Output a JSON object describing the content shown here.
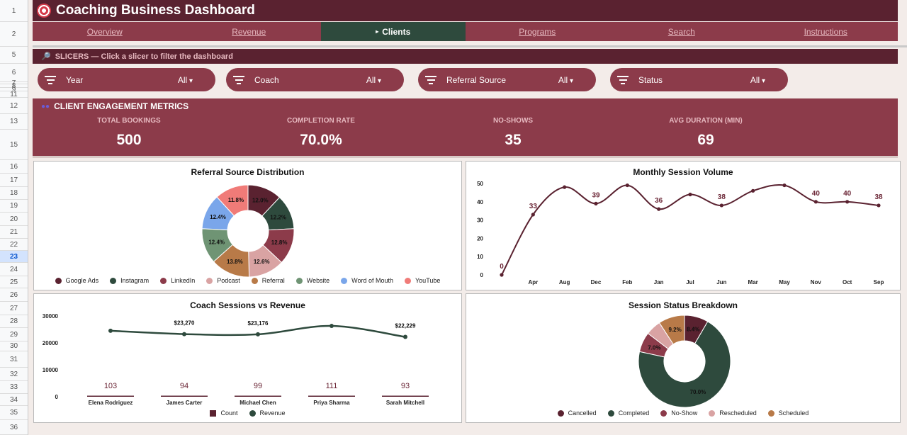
{
  "rows": [
    "1",
    "2",
    "5",
    "6",
    "7",
    "8",
    "9",
    "11",
    "12",
    "13",
    "15",
    "16",
    "17",
    "18",
    "19",
    "20",
    "21",
    "22",
    "23",
    "24",
    "25",
    "26",
    "27",
    "28",
    "29",
    "30",
    "31",
    "32",
    "33",
    "34",
    "35",
    "36"
  ],
  "title": "Coaching Business Dashboard",
  "nav": [
    {
      "label": "Overview",
      "active": false
    },
    {
      "label": "Revenue",
      "active": false
    },
    {
      "label": "Clients",
      "active": true,
      "prefix": "▸"
    },
    {
      "label": "Programs",
      "active": false
    },
    {
      "label": "Search",
      "active": false
    },
    {
      "label": "Instructions",
      "active": false
    }
  ],
  "slicer_bar": "SLICERS — Click a slicer to filter the dashboard",
  "slicers": [
    {
      "label": "Year",
      "value": "All"
    },
    {
      "label": "Coach",
      "value": "All"
    },
    {
      "label": "Referral Source",
      "value": "All"
    },
    {
      "label": "Status",
      "value": "All"
    }
  ],
  "metrics": {
    "heading": "CLIENT ENGAGEMENT METRICS",
    "items": [
      {
        "label": "TOTAL BOOKINGS",
        "value": "500"
      },
      {
        "label": "COMPLETION RATE",
        "value": "70.0%"
      },
      {
        "label": "NO-SHOWS",
        "value": "35"
      },
      {
        "label": "AVG DURATION (MIN)",
        "value": "69"
      }
    ]
  },
  "colors": {
    "maroon": "#5a2230",
    "rose": "#8c3b4a",
    "green": "#2e4a3d"
  },
  "chart_data": [
    {
      "type": "pie",
      "title": "Referral Source Distribution",
      "donut": true,
      "legend_position": "bottom",
      "slices": [
        {
          "label": "Google Ads",
          "value": 12.0,
          "color": "#5a2230"
        },
        {
          "label": "Instagram",
          "value": 12.2,
          "color": "#2e4a3d"
        },
        {
          "label": "LinkedIn",
          "value": 12.8,
          "color": "#8c3b4a"
        },
        {
          "label": "Podcast",
          "value": 12.6,
          "color": "#d9a3a3"
        },
        {
          "label": "Referral",
          "value": 13.8,
          "color": "#b87a48"
        },
        {
          "label": "Website",
          "value": 12.4,
          "color": "#6f9474"
        },
        {
          "label": "Word of Mouth",
          "value": 12.4,
          "color": "#7aa6ea"
        },
        {
          "label": "YouTube",
          "value": 11.8,
          "color": "#f07b78"
        }
      ]
    },
    {
      "type": "line",
      "title": "Monthly Session Volume",
      "categories": [
        "",
        "Apr",
        "Aug",
        "Dec",
        "Feb",
        "Jan",
        "Jul",
        "Jun",
        "Mar",
        "May",
        "Nov",
        "Oct",
        "Sep"
      ],
      "yticks": [
        "0",
        "10",
        "20",
        "30",
        "40",
        "50"
      ],
      "ylim": [
        0,
        50
      ],
      "series": [
        {
          "values": [
            0,
            33,
            48,
            39,
            49,
            36,
            44,
            38,
            46,
            49,
            40,
            40,
            38
          ],
          "color": "#5a2230"
        }
      ],
      "data_labels": [
        {
          "index": 0,
          "text": "0"
        },
        {
          "index": 1,
          "text": "33"
        },
        {
          "index": 3,
          "text": "39"
        },
        {
          "index": 5,
          "text": "36"
        },
        {
          "index": 7,
          "text": "38"
        },
        {
          "index": 10,
          "text": "40"
        },
        {
          "index": 11,
          "text": "40"
        },
        {
          "index": 12,
          "text": "38"
        }
      ]
    },
    {
      "type": "bar",
      "title": "Coach Sessions vs Revenue",
      "categories": [
        "Elena Rodriguez",
        "James Carter",
        "Michael Chen",
        "Priya Sharma",
        "Sarah Mitchell"
      ],
      "yticks": [
        "0",
        "10000",
        "20000",
        "30000"
      ],
      "ylim": [
        0,
        30000
      ],
      "legend_position": "bottom",
      "series": [
        {
          "name": "Count",
          "values": [
            103,
            94,
            99,
            111,
            93
          ],
          "labels": [
            "103",
            "94",
            "99",
            "111",
            "93"
          ],
          "color": "#5a2230"
        },
        {
          "name": "Revenue",
          "values": [
            24500,
            23270,
            23176,
            26300,
            22229
          ],
          "labels": [
            "",
            "$23,270",
            "$23,176",
            "",
            "$22,229"
          ],
          "color": "#2e4a3d"
        }
      ]
    },
    {
      "type": "pie",
      "title": "Session Status Breakdown",
      "donut": true,
      "legend_position": "bottom",
      "slices": [
        {
          "label": "Cancelled",
          "value": 8.4,
          "color": "#5a2230",
          "text": "8.4%"
        },
        {
          "label": "Completed",
          "value": 70.0,
          "color": "#2e4a3d",
          "text": "70.0%"
        },
        {
          "label": "No-Show",
          "value": 7.0,
          "color": "#8c3b4a",
          "text": "7.0%"
        },
        {
          "label": "Rescheduled",
          "value": 5.4,
          "color": "#d9a3a3",
          "text": ""
        },
        {
          "label": "Scheduled",
          "value": 9.2,
          "color": "#b87a48",
          "text": "9.2%"
        }
      ]
    }
  ]
}
